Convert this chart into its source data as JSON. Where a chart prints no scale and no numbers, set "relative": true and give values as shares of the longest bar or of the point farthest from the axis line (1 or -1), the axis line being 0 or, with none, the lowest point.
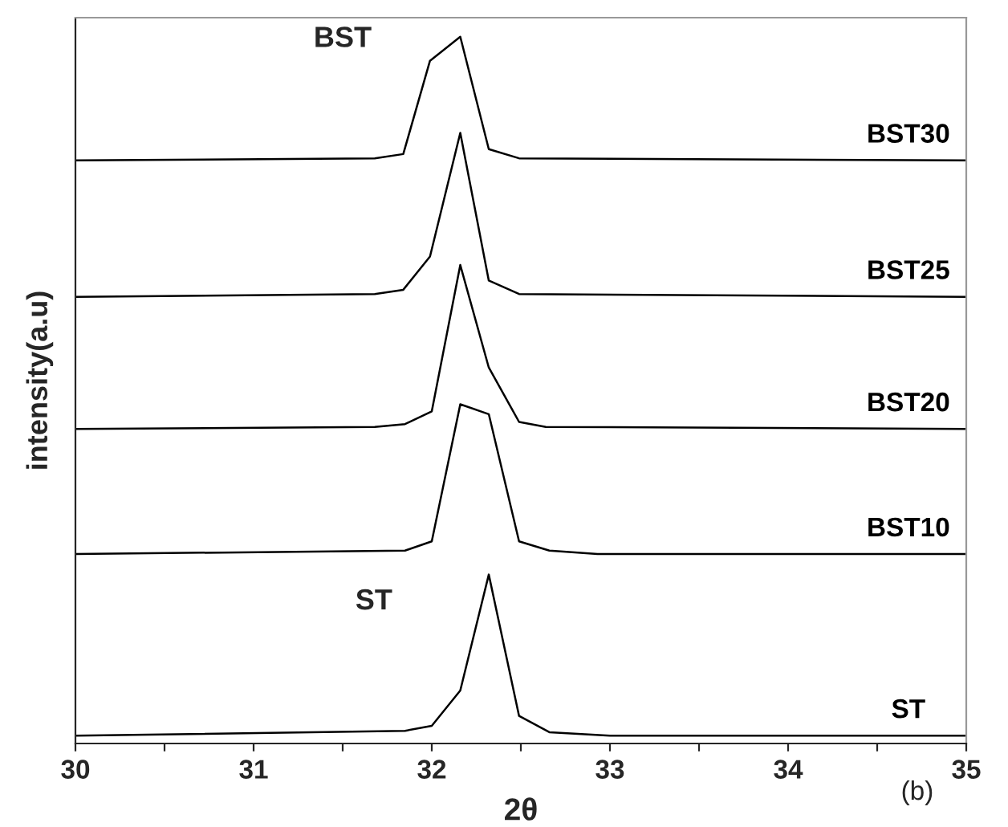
{
  "chart_data": {
    "type": "line",
    "relative": true,
    "xlabel": "2θ",
    "ylabel": "intensity(a.u)",
    "xlim": [
      30,
      35
    ],
    "xticks": [
      30,
      {
        "value": 30.5,
        "label": null
      },
      31,
      {
        "value": 31.5,
        "label": null
      },
      32,
      {
        "value": 32.5,
        "label": null
      },
      33,
      {
        "value": 33.5,
        "label": null
      },
      34,
      {
        "value": 34.5,
        "label": null
      },
      35
    ],
    "grid": false,
    "legend": false,
    "marker": "none",
    "line_style": "solid",
    "annotations": [
      "BST",
      "ST",
      "(b)"
    ],
    "series": [
      {
        "name": "BST30",
        "color": "#000000",
        "x": [
          30,
          31.68,
          31.84,
          31.99,
          32.16,
          32.32,
          32.49,
          35
        ],
        "values": [
          0.825,
          0.828,
          0.834,
          0.966,
          1.0,
          0.841,
          0.828,
          0.825
        ]
      },
      {
        "name": "BST25",
        "color": "#000000",
        "x": [
          30,
          31.68,
          31.84,
          31.99,
          32.16,
          32.32,
          32.49,
          35
        ],
        "values": [
          0.632,
          0.636,
          0.642,
          0.689,
          0.864,
          0.655,
          0.636,
          0.632
        ]
      },
      {
        "name": "BST20",
        "color": "#000000",
        "x": [
          30,
          31.68,
          31.85,
          32.0,
          32.16,
          32.32,
          32.49,
          32.64,
          35
        ],
        "values": [
          0.445,
          0.448,
          0.452,
          0.47,
          0.677,
          0.532,
          0.455,
          0.448,
          0.445
        ]
      },
      {
        "name": "BST10",
        "color": "#000000",
        "x": [
          30,
          31.85,
          32.0,
          32.16,
          32.32,
          32.49,
          32.66,
          32.93,
          35
        ],
        "values": [
          0.268,
          0.273,
          0.286,
          0.48,
          0.466,
          0.286,
          0.273,
          0.268,
          0.268
        ]
      },
      {
        "name": "ST",
        "color": "#000000",
        "x": [
          30,
          31.85,
          32.0,
          32.16,
          32.32,
          32.49,
          32.66,
          33.0,
          35
        ],
        "values": [
          0.011,
          0.018,
          0.025,
          0.075,
          0.239,
          0.039,
          0.016,
          0.011,
          0.011
        ]
      }
    ]
  }
}
